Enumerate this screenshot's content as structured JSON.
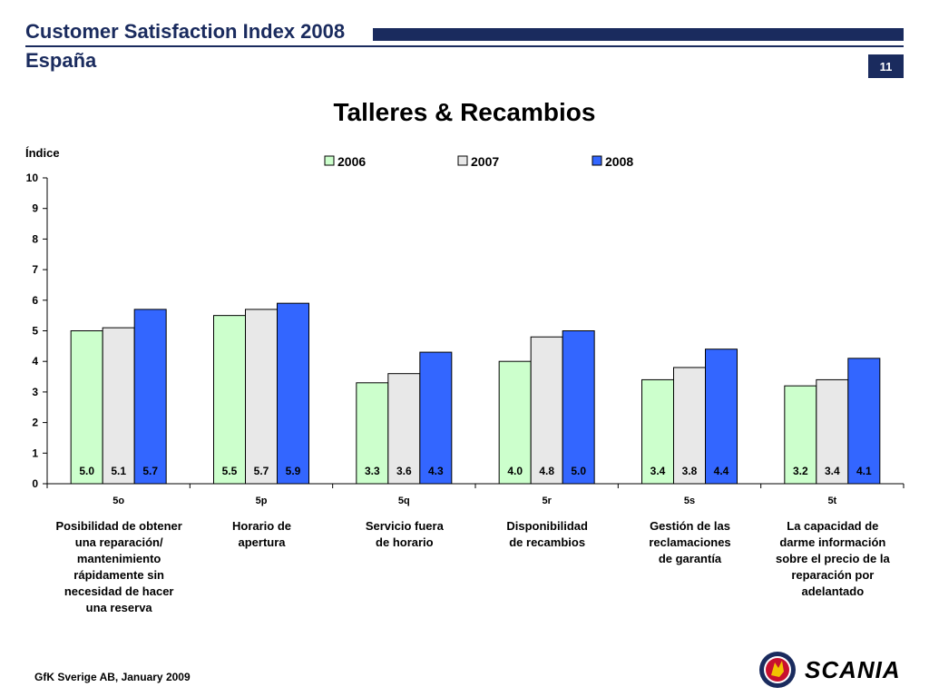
{
  "header": {
    "title": "Customer Satisfaction Index 2008",
    "subtitle": "España",
    "page_number": "11",
    "brand_color": "#1a2b5e"
  },
  "footer": {
    "source": "GfK Sverige AB, January 2009"
  },
  "logo": {
    "name": "SCANIA",
    "icon": "griffin-emblem-icon"
  },
  "chart_data": {
    "type": "bar",
    "title": "Talleres & Recambios",
    "ylabel": "Índice",
    "ylim": [
      0,
      10
    ],
    "yticks": [
      "0",
      "1",
      "2",
      "3",
      "4",
      "5",
      "6",
      "7",
      "8",
      "9",
      "10"
    ],
    "legend_position": "top",
    "categories": [
      "5o",
      "5p",
      "5q",
      "5r",
      "5s",
      "5t"
    ],
    "category_descriptions": [
      "Posibilidad de obtener\nuna reparación/\nmantenimiento\nrápidamente sin\nnecesidad de hacer\nuna reserva",
      "Horario de\napertura",
      "Servicio fuera\nde horario",
      "Disponibilidad\nde recambios",
      "Gestión de las\nreclamaciones\nde garantía",
      "La capacidad de\ndarme información\nsobre el precio de la\nreparación por\nadelantado"
    ],
    "series": [
      {
        "name": "2006",
        "color": "#ccffcc",
        "values": [
          5.0,
          5.5,
          3.3,
          4.0,
          3.4,
          3.2
        ],
        "labels": [
          "5.0",
          "5.5",
          "3.3",
          "4.0",
          "3.4",
          "3.2"
        ]
      },
      {
        "name": "2007",
        "color": "#e8e8e8",
        "values": [
          5.1,
          5.7,
          3.6,
          4.8,
          3.8,
          3.4
        ],
        "labels": [
          "5.1",
          "5.7",
          "3.6",
          "4.8",
          "3.8",
          "3.4"
        ]
      },
      {
        "name": "2008",
        "color": "#3366ff",
        "values": [
          5.7,
          5.9,
          4.3,
          5.0,
          4.4,
          4.1
        ],
        "labels": [
          "5.7",
          "5.9",
          "4.3",
          "5.0",
          "4.4",
          "4.1"
        ]
      }
    ],
    "grid": false
  }
}
